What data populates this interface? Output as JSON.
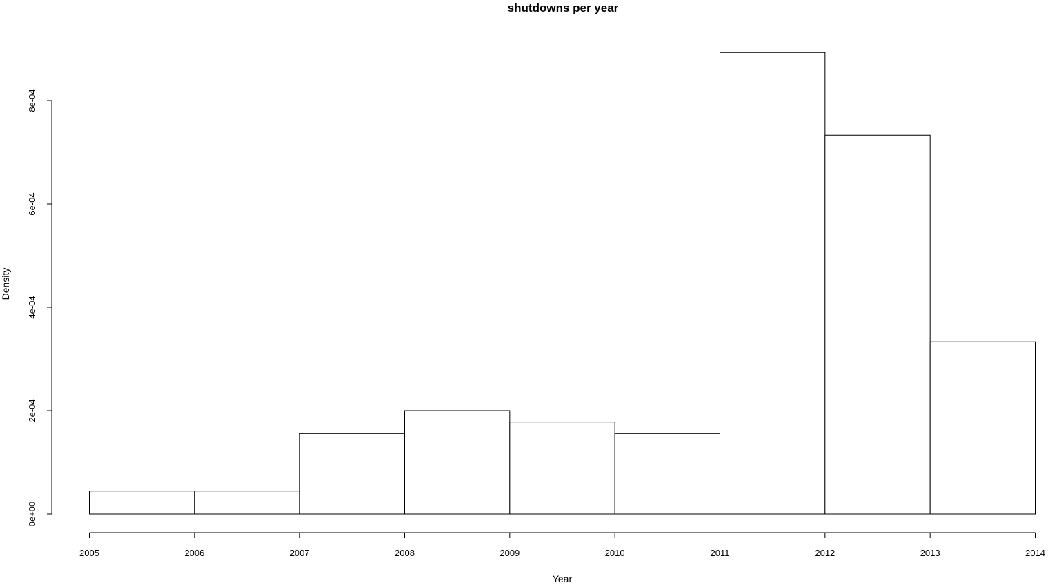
{
  "chart_data": {
    "type": "bar",
    "title": "shutdowns per year",
    "xlabel": "Year",
    "ylabel": "Density",
    "bin_edges": [
      2005,
      2006,
      2007,
      2008,
      2009,
      2010,
      2011,
      2012,
      2013,
      2014
    ],
    "values": [
      4.44e-05,
      4.44e-05,
      0.0001556,
      0.0002,
      0.0001778,
      0.0001556,
      0.000893,
      0.000733,
      0.000333
    ],
    "xlim": [
      2005,
      2014
    ],
    "ylim": [
      0,
      0.0008
    ],
    "x_ticks": [
      2005,
      2006,
      2007,
      2008,
      2009,
      2010,
      2011,
      2012,
      2013,
      2014
    ],
    "x_tick_labels": [
      "2005",
      "2006",
      "2007",
      "2008",
      "2009",
      "2010",
      "2011",
      "2012",
      "2013",
      "2014"
    ],
    "y_ticks": [
      0,
      0.0002,
      0.0004,
      0.0006,
      0.0008
    ],
    "y_tick_labels": [
      "0e+00",
      "2e-04",
      "4e-04",
      "6e-04",
      "8e-04"
    ],
    "grid": false,
    "legend": "none"
  }
}
